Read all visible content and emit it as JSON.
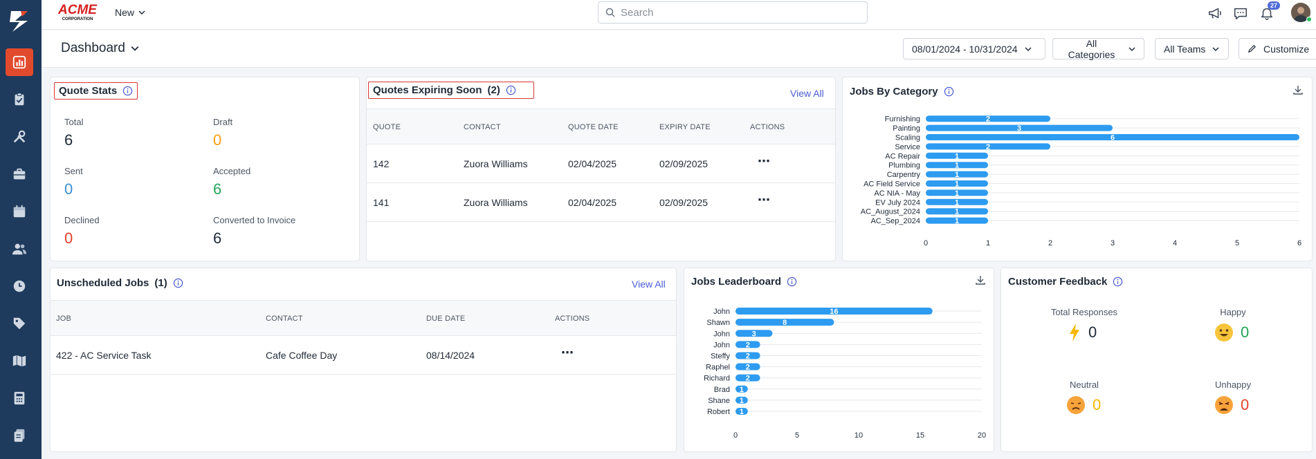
{
  "topbar": {
    "brand_main": "ACME",
    "brand_sub": "CORPORATION",
    "new_label": "New",
    "search_placeholder": "Search",
    "notification_count": "27"
  },
  "subheader": {
    "title": "Dashboard",
    "date_range": "08/01/2024 - 10/31/2024",
    "categories": "All Categories",
    "teams": "All Teams",
    "customize": "Customize"
  },
  "quote_stats": {
    "title": "Quote Stats",
    "items": [
      {
        "label": "Total",
        "value": "6",
        "color": "#1f2937"
      },
      {
        "label": "Draft",
        "value": "0",
        "color": "#f59e0b"
      },
      {
        "label": "Sent",
        "value": "0",
        "color": "#3b8fd4"
      },
      {
        "label": "Accepted",
        "value": "6",
        "color": "#22a55a"
      },
      {
        "label": "Declined",
        "value": "0",
        "color": "#e2412d"
      },
      {
        "label": "Converted to Invoice",
        "value": "6",
        "color": "#1f2937"
      }
    ]
  },
  "quotes_expiring": {
    "title": "Quotes Expiring Soon",
    "count": "(2)",
    "view_all": "View All",
    "columns": [
      "QUOTE",
      "CONTACT",
      "QUOTE DATE",
      "EXPIRY DATE",
      "ACTIONS"
    ],
    "rows": [
      {
        "quote": "142",
        "contact": "Zuora Williams",
        "quote_date": "02/04/2025",
        "expiry_date": "02/09/2025"
      },
      {
        "quote": "141",
        "contact": "Zuora Williams",
        "quote_date": "02/04/2025",
        "expiry_date": "02/09/2025"
      }
    ]
  },
  "unscheduled_jobs": {
    "title": "Unscheduled Jobs",
    "count": "(1)",
    "view_all": "View All",
    "columns": [
      "JOB",
      "CONTACT",
      "DUE DATE",
      "ACTIONS"
    ],
    "rows": [
      {
        "job": "422 - AC Service Task",
        "contact": "Cafe Coffee Day",
        "due_date": "08/14/2024"
      }
    ]
  },
  "customer_feedback": {
    "title": "Customer Feedback",
    "items": [
      {
        "label": "Total Responses",
        "value": "0",
        "icon": "bolt-icon",
        "color": "#1f2937"
      },
      {
        "label": "Happy",
        "value": "0",
        "icon": "happy-face-icon",
        "color": "#22a55a"
      },
      {
        "label": "Neutral",
        "value": "0",
        "icon": "neutral-face-icon",
        "color": "#f5b800"
      },
      {
        "label": "Unhappy",
        "value": "0",
        "icon": "unhappy-face-icon",
        "color": "#e2412d"
      }
    ]
  },
  "chart_data": [
    {
      "type": "bar",
      "orientation": "horizontal",
      "title": "Jobs By Category",
      "categories": [
        "Furnishing",
        "Painting",
        "Scaling",
        "Service",
        "AC Repair",
        "Plumbing",
        "Carpentry",
        "AC Field Service",
        "AC NIA - May",
        "EV July 2024",
        "AC_August_2024",
        "AC_Sep_2024"
      ],
      "values": [
        2,
        3,
        6,
        2,
        1,
        1,
        1,
        1,
        1,
        1,
        1,
        1
      ],
      "xlim": [
        0,
        6
      ],
      "xticks": [
        0,
        1,
        2,
        3,
        4,
        5,
        6
      ],
      "bar_color": "#2d9bf0",
      "grid": true
    },
    {
      "type": "bar",
      "orientation": "horizontal",
      "title": "Jobs Leaderboard",
      "categories": [
        "John",
        "Shawn",
        "John",
        "John",
        "Steffy",
        "Raphel",
        "Richard",
        "Brad",
        "Shane",
        "Robert"
      ],
      "values": [
        16,
        8,
        3,
        2,
        2,
        2,
        2,
        1,
        1,
        1
      ],
      "xlim": [
        0,
        20
      ],
      "xticks": [
        0,
        5,
        10,
        15,
        20
      ],
      "bar_color": "#2d9bf0",
      "grid": true
    }
  ]
}
